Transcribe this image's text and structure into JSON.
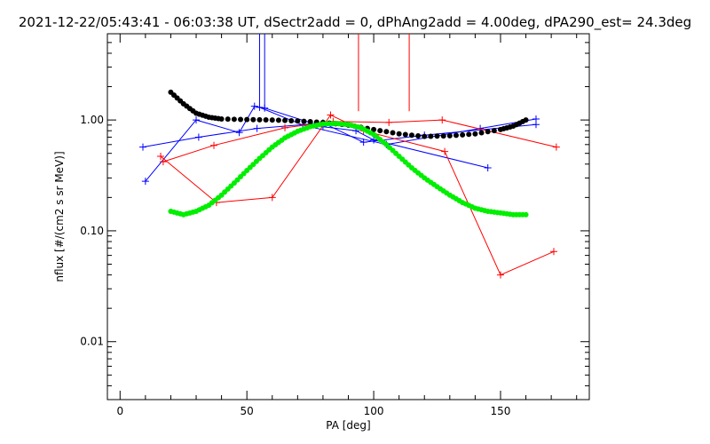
{
  "chart_data": {
    "type": "scatter",
    "title": "2021-12-22/05:43:41 - 06:03:38 UT, dSectr2add = 0, dPhAng2add = 4.00deg, dPA290_est=  24.3deg",
    "xlabel": "PA [deg]",
    "ylabel": "nflux [#/(cm2 s sr MeV)]",
    "xlim": [
      -5,
      185
    ],
    "ylim": [
      0.003,
      6
    ],
    "yscale": "log",
    "grid": false,
    "x_ticks": [
      {
        "value": 0,
        "label": "0"
      },
      {
        "value": 50,
        "label": "50"
      },
      {
        "value": 100,
        "label": "100"
      },
      {
        "value": 150,
        "label": "150"
      }
    ],
    "y_ticks": [
      {
        "value": 0.01,
        "label": "0.01"
      },
      {
        "value": 0.1,
        "label": "0.10"
      },
      {
        "value": 1,
        "label": "1.00"
      }
    ],
    "series": [
      {
        "kind": "line-plus",
        "color": "#0000ff",
        "points": [
          [
            9,
            0.57
          ],
          [
            31,
            0.7
          ],
          [
            54,
            0.84
          ],
          [
            80,
            0.94
          ],
          [
            96,
            0.63
          ],
          [
            120,
            0.73
          ],
          [
            164,
            0.91
          ]
        ]
      },
      {
        "kind": "line-plus",
        "color": "#0000ff",
        "points": [
          [
            10,
            0.28
          ],
          [
            30,
            1.0
          ],
          [
            47,
            0.77
          ],
          [
            53,
            1.33
          ],
          [
            57,
            1.28
          ],
          [
            80,
            0.87
          ],
          [
            93,
            0.8
          ],
          [
            100,
            0.66
          ],
          [
            145,
            0.37
          ]
        ]
      },
      {
        "kind": "line-plus",
        "color": "#0000ff",
        "points": [
          [
            55,
            1.3
          ],
          [
            72,
            0.9
          ],
          [
            105,
            0.6
          ],
          [
            142,
            0.84
          ],
          [
            164,
            1.02
          ]
        ]
      },
      {
        "kind": "line-plus",
        "color": "#ff0000",
        "points": [
          [
            16,
            0.47
          ],
          [
            38,
            0.18
          ],
          [
            60,
            0.2
          ],
          [
            83,
            1.11
          ],
          [
            96,
            0.8
          ],
          [
            128,
            0.52
          ],
          [
            150,
            0.04
          ],
          [
            171,
            0.065
          ]
        ]
      },
      {
        "kind": "line-plus",
        "color": "#ff0000",
        "points": [
          [
            17,
            0.42
          ],
          [
            37,
            0.59
          ],
          [
            65,
            0.85
          ],
          [
            84,
            0.97
          ],
          [
            106,
            0.95
          ],
          [
            127,
            1.0
          ],
          [
            172,
            0.57
          ]
        ]
      },
      {
        "kind": "spike",
        "color": "#0000ff",
        "points": [
          [
            55,
            1.3,
            6
          ],
          [
            57,
            1.28,
            6
          ]
        ]
      },
      {
        "kind": "spike",
        "color": "#ff0000",
        "points": [
          [
            94,
            1.2,
            6
          ],
          [
            114,
            1.2,
            6
          ]
        ]
      },
      {
        "kind": "dots",
        "color": "#000000",
        "points": [
          [
            20,
            1.78
          ],
          [
            25,
            1.4
          ],
          [
            30,
            1.15
          ],
          [
            35,
            1.06
          ],
          [
            40,
            1.02
          ],
          [
            50,
            1.01
          ],
          [
            60,
            1.0
          ],
          [
            70,
            0.98
          ],
          [
            80,
            0.95
          ],
          [
            90,
            0.9
          ],
          [
            100,
            0.82
          ],
          [
            110,
            0.75
          ],
          [
            120,
            0.71
          ],
          [
            130,
            0.72
          ],
          [
            140,
            0.75
          ],
          [
            150,
            0.82
          ],
          [
            155,
            0.88
          ],
          [
            160,
            1.0
          ]
        ]
      },
      {
        "kind": "dots",
        "color": "#00ee00",
        "points": [
          [
            20,
            0.15
          ],
          [
            25,
            0.14
          ],
          [
            30,
            0.15
          ],
          [
            35,
            0.17
          ],
          [
            40,
            0.21
          ],
          [
            45,
            0.27
          ],
          [
            50,
            0.35
          ],
          [
            55,
            0.45
          ],
          [
            60,
            0.57
          ],
          [
            65,
            0.69
          ],
          [
            70,
            0.79
          ],
          [
            75,
            0.87
          ],
          [
            80,
            0.92
          ],
          [
            85,
            0.93
          ],
          [
            90,
            0.91
          ],
          [
            95,
            0.85
          ],
          [
            100,
            0.74
          ],
          [
            105,
            0.6
          ],
          [
            110,
            0.47
          ],
          [
            115,
            0.37
          ],
          [
            120,
            0.3
          ],
          [
            125,
            0.25
          ],
          [
            130,
            0.21
          ],
          [
            135,
            0.18
          ],
          [
            140,
            0.16
          ],
          [
            145,
            0.15
          ],
          [
            150,
            0.145
          ],
          [
            155,
            0.14
          ],
          [
            160,
            0.14
          ]
        ]
      }
    ]
  }
}
